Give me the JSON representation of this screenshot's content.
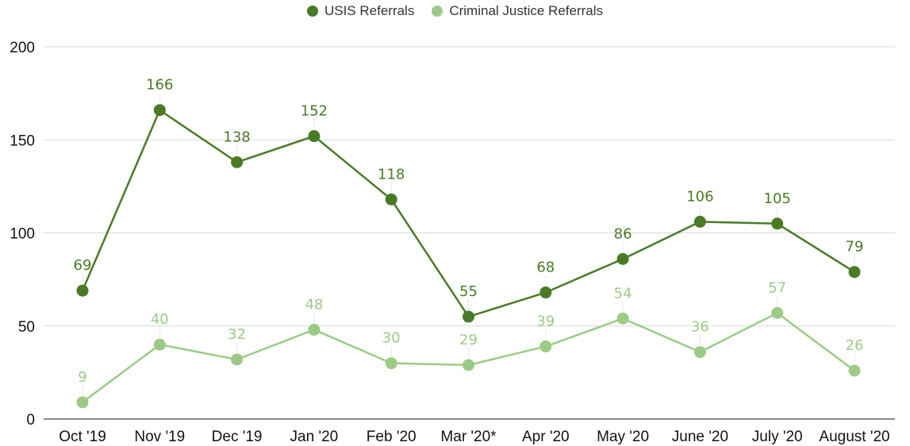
{
  "chart_data": {
    "type": "line",
    "categories": [
      "Oct '19",
      "Nov '19",
      "Dec '19",
      "Jan '20",
      "Feb '20",
      "Mar '20*",
      "Apr '20",
      "May '20",
      "June '20",
      "July '20",
      "August '20"
    ],
    "series": [
      {
        "name": "USIS Referrals",
        "color": "#4a7a26",
        "values": [
          69,
          166,
          138,
          152,
          118,
          55,
          68,
          86,
          106,
          105,
          79
        ]
      },
      {
        "name": "Criminal Justice Referrals",
        "color": "#9ccb86",
        "values": [
          9,
          40,
          32,
          48,
          30,
          29,
          39,
          54,
          36,
          57,
          26
        ]
      }
    ],
    "ylim": [
      0,
      200
    ],
    "yticks": [
      "0",
      "50",
      "100",
      "150",
      "200"
    ],
    "legend_position": "top-center",
    "grid": true
  }
}
